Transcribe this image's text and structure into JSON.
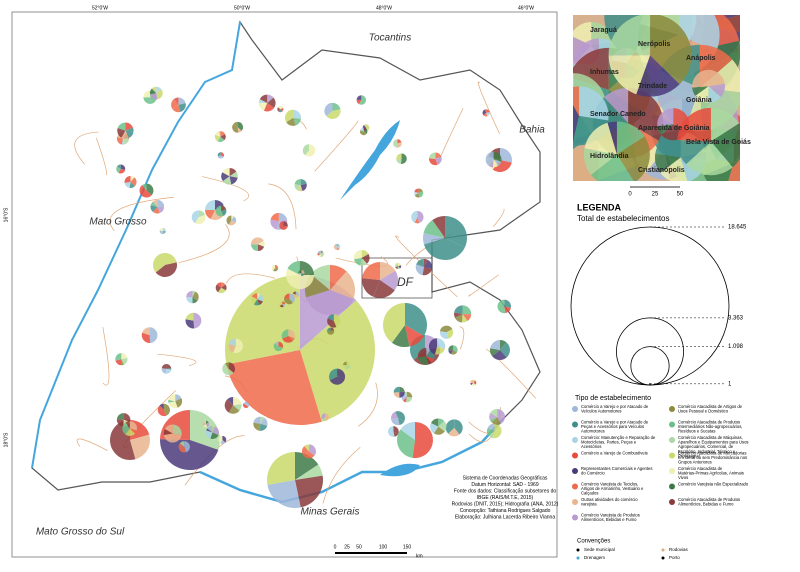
{
  "map": {
    "graticule": {
      "top": [
        "52°0'W",
        "50°0'W",
        "48°0'W",
        "46°0'W"
      ],
      "side": [
        "16°0'S",
        "18°0'S"
      ]
    },
    "regions": [
      "Tocantins",
      "Bahia",
      "Mato Grosso",
      "DF",
      "Minas Gerais",
      "Mato Grosso do Sul"
    ],
    "scale": {
      "ticks": [
        "0",
        "25",
        "50",
        "100",
        "150"
      ],
      "unit": "km"
    },
    "credits": [
      "Sistema de Coordenadas Geográficas",
      "Datum Horizontal: SAD - 1969",
      "Fonte dos dados: Classificação subsetores do",
      "IBGE (RAIS/M.T.E, 2015)",
      "Rodovias (DNIT, 2015); Hidrografia (ANA, 2012)",
      "Concepção: Tathiana Rodrigues Salgado",
      "Elaboração: Julhiana Lacerda Ribeiro Vianna"
    ]
  },
  "inset": {
    "labels": [
      "Jaraguá",
      "Nerópolis",
      "Anápolis",
      "Inhumas",
      "Trindade",
      "Goiânia",
      "Senador Canedo",
      "Aparecida de Goiânia",
      "Bela Vista de Goiás",
      "Hidrolândia",
      "Cristianópolis"
    ],
    "scale": [
      "0",
      "25",
      "50"
    ]
  },
  "legend": {
    "title": "LEGENDA",
    "size_title": "Total de estabelecimentos",
    "sizes": [
      {
        "value": 18645,
        "label": "18.645"
      },
      {
        "value": 3363,
        "label": "3.363"
      },
      {
        "value": 1098,
        "label": "1.098"
      },
      1
    ],
    "types_title": "Tipo de estabelecimento",
    "types": [
      {
        "name": "Comércio a Varejo e por Atacado de Veículos Automotores",
        "color": "#9fb7d9"
      },
      {
        "name": "Comércio a Varejo e por Atacado de Peças e Acessórios para Veículos Automotores",
        "color": "#3f8f8a"
      },
      {
        "name": "Comércio: Manutenção e Reparação de Motocicletas, Partes, Peças e Acessórios",
        "color": "#a8d4e6"
      },
      {
        "name": "Comércio a Varejo de Combustíveis",
        "color": "#e84a3c"
      },
      {
        "name": "Representantes Comerciais e Agentes do Comércio",
        "color": "#4b3a7a"
      },
      {
        "name": "Comércio Varejista de Tecidos, Artigos de Armarinho, Vestuário e Calçados",
        "color": "#ef6a4a"
      },
      {
        "name": "Outras atividades do comércio varejista",
        "color": "#e9b48e"
      },
      {
        "name": "Comércio Varejista de Produtos Alimentícios, Bebidas e Fumo",
        "color": "#b99ad0"
      },
      {
        "name": "Comércio Atacadista de Artigos de Usos Pessoal e Doméstico",
        "color": "#8c8a3c"
      },
      {
        "name": "Comércio Atacadista de Produtos Intermediários Não-agropecuários, Resíduos e Sucatas",
        "color": "#6cbf8a"
      },
      {
        "name": "Comércio Atacadista de Máquinas, Aparelhos e Equipamentos para Usos Agropecuários, Comercial, de Escritório, Industrial, Técnico e Profissional",
        "color": "#a9d8a0"
      },
      {
        "name": "Comércio Atacadista de Mercadorias em Geral ou sem Predominância nos Grupos Anteriores",
        "color": "#c9d96a"
      },
      {
        "name": "Comércio Atacadista de Matérias-Primas Agrícolas, Animais Vivos",
        "color": "#eef0b0"
      },
      {
        "name": "Comércio Varejista não Especializado",
        "color": "#3e7a48"
      },
      {
        "name": "Comércio Atacadista de Produtos Alimentícios, Bebidas e Fumo",
        "color": "#8a3a3a"
      }
    ],
    "conventions_title": "Convenções",
    "conventions": [
      "Sede municipal",
      "Rodovias",
      "Drenagem",
      "Porto"
    ]
  }
}
